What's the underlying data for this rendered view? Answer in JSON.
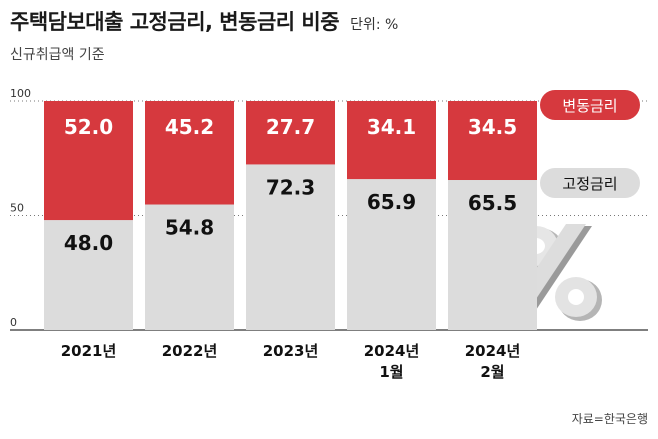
{
  "header": {
    "title": "주택담보대출 고정금리, 변동금리 비중",
    "unit": "단위: %",
    "subtitle": "신규취급액 기준"
  },
  "source": "자료=한국은행",
  "chart_data": {
    "type": "bar",
    "stacked": true,
    "categories": [
      [
        "2021년"
      ],
      [
        "2022년"
      ],
      [
        "2023년"
      ],
      [
        "2024년",
        "1월"
      ],
      [
        "2024년",
        "2월"
      ]
    ],
    "series": [
      {
        "name": "고정금리",
        "values": [
          48.0,
          54.8,
          72.3,
          65.9,
          65.5
        ],
        "color": "#dcdcdc",
        "label_color": "#111111"
      },
      {
        "name": "변동금리",
        "values": [
          52.0,
          45.2,
          27.7,
          34.1,
          34.5
        ],
        "color": "#d6393e",
        "label_color": "#ffffff"
      }
    ],
    "yticks": [
      0,
      50,
      100
    ],
    "ylim": [
      0,
      100
    ],
    "legend_position": "right",
    "grid": "dotted at 50 and 100",
    "decoration": "percent-sign-icon"
  }
}
